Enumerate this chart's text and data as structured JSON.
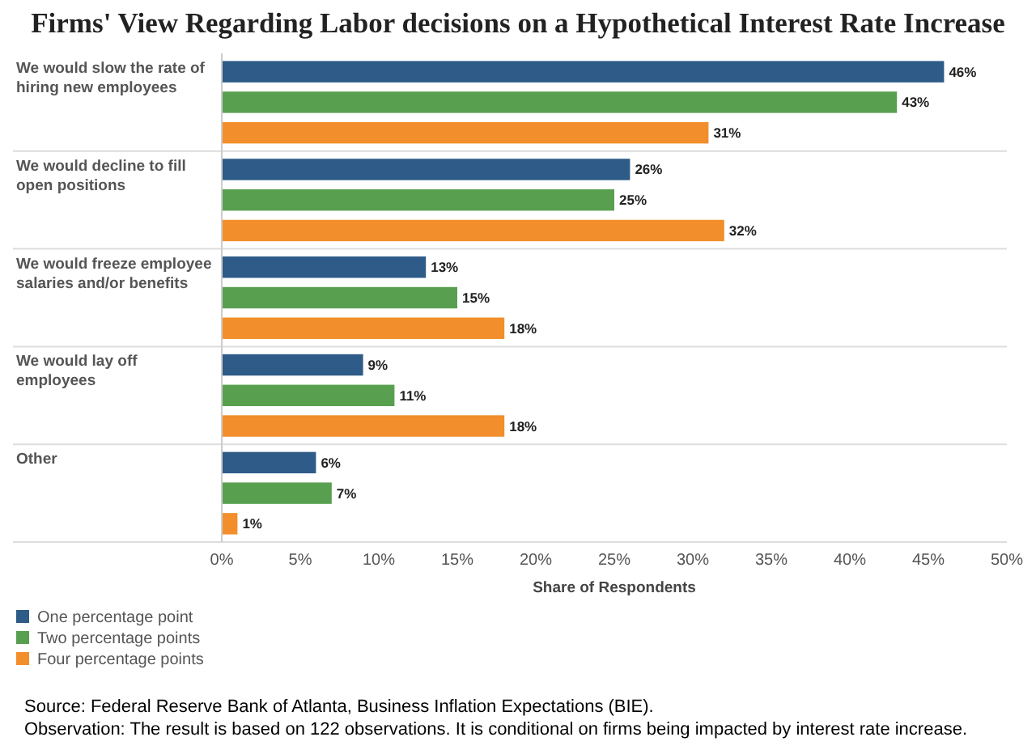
{
  "chart_data": {
    "type": "bar",
    "orientation": "horizontal",
    "title": "Firms' View Regarding Labor decisions on a Hypothetical Interest Rate Increase",
    "categories": [
      "We would slow the rate of hiring new employees",
      "We would decline to fill open positions",
      "We would freeze employee salaries and/or benefits",
      "We would lay off employees",
      "Other"
    ],
    "series": [
      {
        "name": "One percentage point",
        "color": "#2e5b88",
        "values": [
          46,
          26,
          13,
          9,
          6
        ]
      },
      {
        "name": "Two percentage points",
        "color": "#58a04f",
        "values": [
          43,
          25,
          15,
          11,
          7
        ]
      },
      {
        "name": "Four percentage points",
        "color": "#f28e2b",
        "values": [
          31,
          32,
          18,
          18,
          1
        ]
      }
    ],
    "xlim": [
      0,
      50
    ],
    "xticks": [
      {
        "value": 0,
        "label": "0%"
      },
      {
        "value": 5,
        "label": "5%"
      },
      {
        "value": 10,
        "label": "10%"
      },
      {
        "value": 15,
        "label": "15%"
      },
      {
        "value": 20,
        "label": "20%"
      },
      {
        "value": 25,
        "label": "25%"
      },
      {
        "value": 30,
        "label": "30%"
      },
      {
        "value": 35,
        "label": "35%"
      },
      {
        "value": 40,
        "label": "40%"
      },
      {
        "value": 45,
        "label": "45%"
      },
      {
        "value": 50,
        "label": "50%"
      }
    ],
    "xlabel": "Share of Respondents",
    "value_labels": [
      [
        "46%",
        "26%",
        "13%",
        "9%",
        "6%"
      ],
      [
        "43%",
        "25%",
        "15%",
        "11%",
        "7%"
      ],
      [
        "31%",
        "32%",
        "18%",
        "18%",
        "1%"
      ]
    ],
    "grid": false,
    "legend": "bottom left",
    "annotations": [
      "Source: Federal Reserve Bank of Atlanta, Business Inflation Expectations (BIE).",
      "Observation: The result is based on 122 observations. It is conditional on firms being impacted by  interest rate increase."
    ]
  }
}
